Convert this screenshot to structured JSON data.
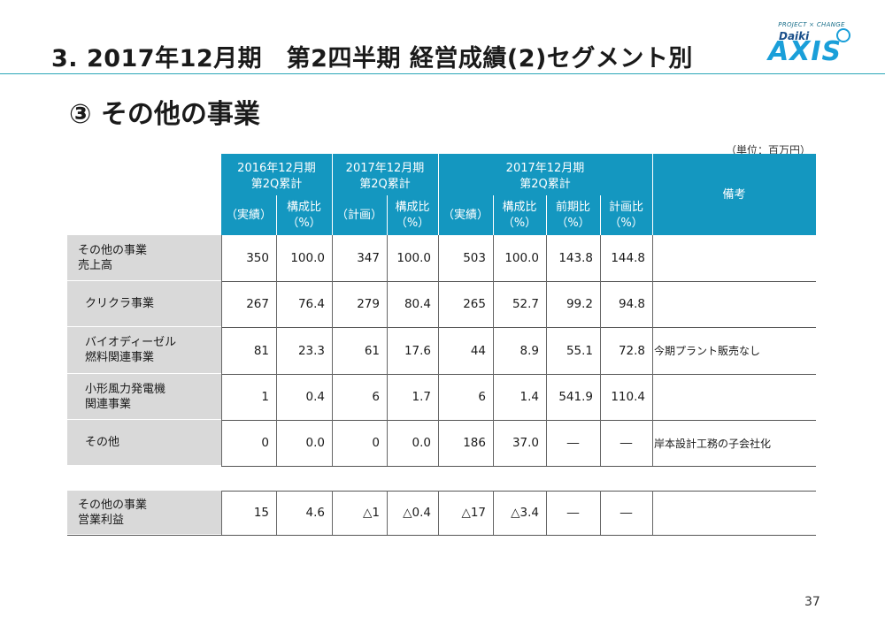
{
  "header": {
    "title": "3. 2017年12月期　第2四半期 経営成績(2)セグメント別",
    "subtitle": "③ その他の事業",
    "unit_note": "（単位：百万円）",
    "page_number": "37"
  },
  "logo": {
    "tagline": "PROJECT × CHANGE",
    "brand_small": "Daiki",
    "brand_large": "AXIS"
  },
  "table": {
    "groups": [
      {
        "label_line1": "2016年12月期",
        "label_line2": "第2Q累計"
      },
      {
        "label_line1": "2017年12月期",
        "label_line2": "第2Q累計"
      },
      {
        "label_line1": "2017年12月期",
        "label_line2": "第2Q累計"
      }
    ],
    "remarks_header": "備考",
    "subheaders": [
      {
        "line1": "（実績）",
        "line2": ""
      },
      {
        "line1": "構成比",
        "line2": "（%）"
      },
      {
        "line1": "（計画）",
        "line2": ""
      },
      {
        "line1": "構成比",
        "line2": "（%）"
      },
      {
        "line1": "（実績）",
        "line2": ""
      },
      {
        "line1": "構成比",
        "line2": "（%）"
      },
      {
        "line1": "前期比",
        "line2": "（%）"
      },
      {
        "line1": "計画比",
        "line2": "（%）"
      }
    ],
    "rows": [
      {
        "label_line1": "その他の事業",
        "label_line2": "売上高",
        "values": [
          "350",
          "100.0",
          "347",
          "100.0",
          "503",
          "100.0",
          "143.8",
          "144.8"
        ],
        "remark": ""
      },
      {
        "label_line1": "クリクラ事業",
        "label_line2": "",
        "values": [
          "267",
          "76.4",
          "279",
          "80.4",
          "265",
          "52.7",
          "99.2",
          "94.8"
        ],
        "remark": ""
      },
      {
        "label_line1": "バイオディーゼル",
        "label_line2": "燃料関連事業",
        "values": [
          "81",
          "23.3",
          "61",
          "17.6",
          "44",
          "8.9",
          "55.1",
          "72.8"
        ],
        "remark": "今期プラント販売なし"
      },
      {
        "label_line1": "小形風力発電機",
        "label_line2": "関連事業",
        "values": [
          "1",
          "0.4",
          "6",
          "1.7",
          "6",
          "1.4",
          "541.9",
          "110.4"
        ],
        "remark": ""
      },
      {
        "label_line1": "その他",
        "label_line2": "",
        "values": [
          "0",
          "0.0",
          "0",
          "0.0",
          "186",
          "37.0",
          "―",
          "―"
        ],
        "remark": "岸本設計工務の子会社化"
      }
    ],
    "profit_row": {
      "label_line1": "その他の事業",
      "label_line2": "営業利益",
      "values": [
        "15",
        "4.6",
        "△1",
        "△0.4",
        "△17",
        "△3.4",
        "―",
        "―"
      ],
      "remark": ""
    }
  }
}
